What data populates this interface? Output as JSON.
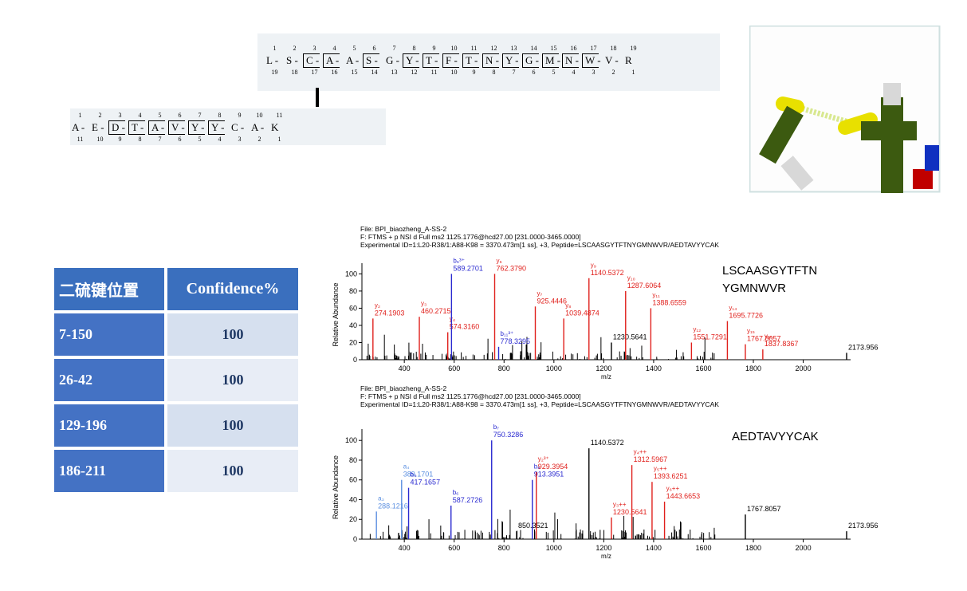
{
  "peptide_map": {
    "chain1": {
      "residues": [
        "L",
        "S",
        "C",
        "A",
        "A",
        "S",
        "G",
        "Y",
        "T",
        "F",
        "T",
        "N",
        "Y",
        "G",
        "M",
        "N",
        "W",
        "V",
        "R"
      ],
      "top_numbers": [
        "1",
        "2",
        "3",
        "4",
        "5",
        "6",
        "7",
        "8",
        "9",
        "10",
        "11",
        "12",
        "13",
        "14",
        "15",
        "16",
        "17",
        "18",
        "19"
      ],
      "bottom_numbers": [
        "19",
        "18",
        "17",
        "16",
        "15",
        "14",
        "13",
        "12",
        "11",
        "10",
        "9",
        "8",
        "7",
        "6",
        "5",
        "4",
        "3",
        "2",
        "1"
      ]
    },
    "chain2": {
      "residues": [
        "A",
        "E",
        "D",
        "T",
        "A",
        "V",
        "Y",
        "Y",
        "C",
        "A",
        "K"
      ],
      "top_numbers": [
        "1",
        "2",
        "3",
        "4",
        "5",
        "6",
        "7",
        "8",
        "9",
        "10",
        "11"
      ],
      "bottom_numbers": [
        "11",
        "10",
        "9",
        "8",
        "7",
        "6",
        "5",
        "4",
        "3",
        "2",
        "1"
      ]
    }
  },
  "table": {
    "headers": [
      "二硫键位置",
      "Confidence%"
    ],
    "rows": [
      {
        "site": "7-150",
        "confidence": "100"
      },
      {
        "site": "26-42",
        "confidence": "100"
      },
      {
        "site": "129-196",
        "confidence": "100"
      },
      {
        "site": "186-211",
        "confidence": "100"
      }
    ]
  },
  "colors": {
    "table_header": "#3a6fbe",
    "y_ion": "#e0201c",
    "b_ion": "#2a2ad0",
    "a_ion": "#5b8fe0",
    "bond_yellow": "#e8e000",
    "carbon_green": "#3c5a10"
  },
  "chart_data": [
    {
      "type": "bar",
      "header_lines": [
        "File: BPI_biaozheng_A-SS-2",
        "F: FTMS + p NSI d Full ms2 1125.1776@hcd27.00 [231.0000-3465.0000]",
        "Experimental  ID=1:L20-R38/1:A88-K98  =  3370.473m[1 ss],  +3,  Peptide=LSCAASGYTFTNYGMNWVR/AEDTAVYYCAK"
      ],
      "peptide_label": [
        "LSCAASGYTFTN",
        "YGMNWVR"
      ],
      "ylabel": "Relative Abundance",
      "xlabel": "m/z",
      "xlim": [
        230,
        2190
      ],
      "ylim": [
        0,
        105
      ],
      "xticks": [
        "400",
        "600",
        "800",
        "1000",
        "1200",
        "1400",
        "1600",
        "1800",
        "2000"
      ],
      "yticks": [
        "0",
        "20",
        "40",
        "60",
        "80",
        "100"
      ],
      "peaks": [
        {
          "x": 274.19,
          "y": 48,
          "ion": "y",
          "label_ion": "y₂",
          "label_mz": "274.1903"
        },
        {
          "x": 460.27,
          "y": 50,
          "ion": "y",
          "label_ion": "y₃",
          "label_mz": "460.2715"
        },
        {
          "x": 574.32,
          "y": 32,
          "ion": "y",
          "label_ion": "y₄",
          "label_mz": "574.3160"
        },
        {
          "x": 589.27,
          "y": 100,
          "ion": "b",
          "label_ion": "b₆³⁺",
          "label_mz": "589.2701"
        },
        {
          "x": 762.38,
          "y": 100,
          "ion": "y",
          "label_ion": "y₆",
          "label_mz": "762.3790"
        },
        {
          "x": 778.33,
          "y": 15,
          "ion": "b",
          "label_ion": "b₁₁³⁺",
          "label_mz": "778.3295"
        },
        {
          "x": 925.44,
          "y": 62,
          "ion": "y",
          "label_ion": "y₇",
          "label_mz": "925.4446"
        },
        {
          "x": 1039.49,
          "y": 48,
          "ion": "y",
          "label_ion": "y₈",
          "label_mz": "1039.4874"
        },
        {
          "x": 1140.54,
          "y": 95,
          "ion": "y",
          "label_ion": "y₉",
          "label_mz": "1140.5372"
        },
        {
          "x": 1230.56,
          "y": 20,
          "ion": "none",
          "label_ion": "",
          "label_mz": "1230.5641"
        },
        {
          "x": 1287.61,
          "y": 80,
          "ion": "y",
          "label_ion": "y₁₀",
          "label_mz": "1287.6064"
        },
        {
          "x": 1388.66,
          "y": 60,
          "ion": "y",
          "label_ion": "y₁₁",
          "label_mz": "1388.6559"
        },
        {
          "x": 1551.73,
          "y": 20,
          "ion": "y",
          "label_ion": "y₁₂",
          "label_mz": "1551.7291"
        },
        {
          "x": 1695.77,
          "y": 45,
          "ion": "y",
          "label_ion": "y₁₄",
          "label_mz": "1695.7726"
        },
        {
          "x": 1767.81,
          "y": 18,
          "ion": "y",
          "label_ion": "y₁₅",
          "label_mz": "1767.8057"
        },
        {
          "x": 1837.84,
          "y": 12,
          "ion": "y",
          "label_ion": "y₁₆",
          "label_mz": "1837.8367"
        },
        {
          "x": 2173.96,
          "y": 8,
          "ion": "none",
          "label_ion": "",
          "label_mz": "2173.9563"
        }
      ]
    },
    {
      "type": "bar",
      "header_lines": [
        "File: BPI_biaozheng_A-SS-2",
        "F: FTMS + p NSI d Full ms2 1125.1776@hcd27.00 [231.0000-3465.0000]",
        "Experimental  ID=1:L20-R38/1:A88-K98  =  3370.473m[1 ss],  +3,  Peptide=LSCAASGYTFTNYGMNWVR/AEDTAVYYCAK"
      ],
      "peptide_label": [
        "AEDTAVYYCAK"
      ],
      "ylabel": "Relative Abundance",
      "xlabel": "m/z",
      "xlim": [
        230,
        2190
      ],
      "ylim": [
        0,
        105
      ],
      "xticks": [
        "400",
        "600",
        "800",
        "1000",
        "1200",
        "1400",
        "1600",
        "1800",
        "2000"
      ],
      "yticks": [
        "0",
        "20",
        "40",
        "60",
        "80",
        "100"
      ],
      "peaks": [
        {
          "x": 288.12,
          "y": 28,
          "ion": "a",
          "label_ion": "a₃",
          "label_mz": "288.1216"
        },
        {
          "x": 389.17,
          "y": 60,
          "ion": "a",
          "label_ion": "a₄",
          "label_mz": "389.1701"
        },
        {
          "x": 417.17,
          "y": 52,
          "ion": "b",
          "label_ion": "b₄",
          "label_mz": "417.1657"
        },
        {
          "x": 587.27,
          "y": 34,
          "ion": "b",
          "label_ion": "b₆",
          "label_mz": "587.2726"
        },
        {
          "x": 750.33,
          "y": 100,
          "ion": "b",
          "label_ion": "b₇",
          "label_mz": "750.3286"
        },
        {
          "x": 850.35,
          "y": 8,
          "ion": "none",
          "label_ion": "",
          "label_mz": "850.3521"
        },
        {
          "x": 913.4,
          "y": 60,
          "ion": "b",
          "label_ion": "b₈",
          "label_mz": "913.3951"
        },
        {
          "x": 929.4,
          "y": 68,
          "ion": "y",
          "label_ion": "y₂³⁺",
          "label_mz": "929.3954"
        },
        {
          "x": 1140.54,
          "y": 92,
          "ion": "none",
          "label_ion": "",
          "label_mz": "1140.5372"
        },
        {
          "x": 1230.56,
          "y": 22,
          "ion": "y",
          "label_ion": "y₃++",
          "label_mz": "1230.5641"
        },
        {
          "x": 1312.6,
          "y": 75,
          "ion": "y",
          "label_ion": "y₄++",
          "label_mz": "1312.5967"
        },
        {
          "x": 1393.63,
          "y": 58,
          "ion": "y",
          "label_ion": "y₅++",
          "label_mz": "1393.6251"
        },
        {
          "x": 1443.67,
          "y": 38,
          "ion": "y",
          "label_ion": "y₆++",
          "label_mz": "1443.6653"
        },
        {
          "x": 1767.81,
          "y": 25,
          "ion": "none",
          "label_ion": "",
          "label_mz": "1767.8057"
        },
        {
          "x": 2173.96,
          "y": 8,
          "ion": "none",
          "label_ion": "",
          "label_mz": "2173.9563"
        }
      ]
    }
  ]
}
